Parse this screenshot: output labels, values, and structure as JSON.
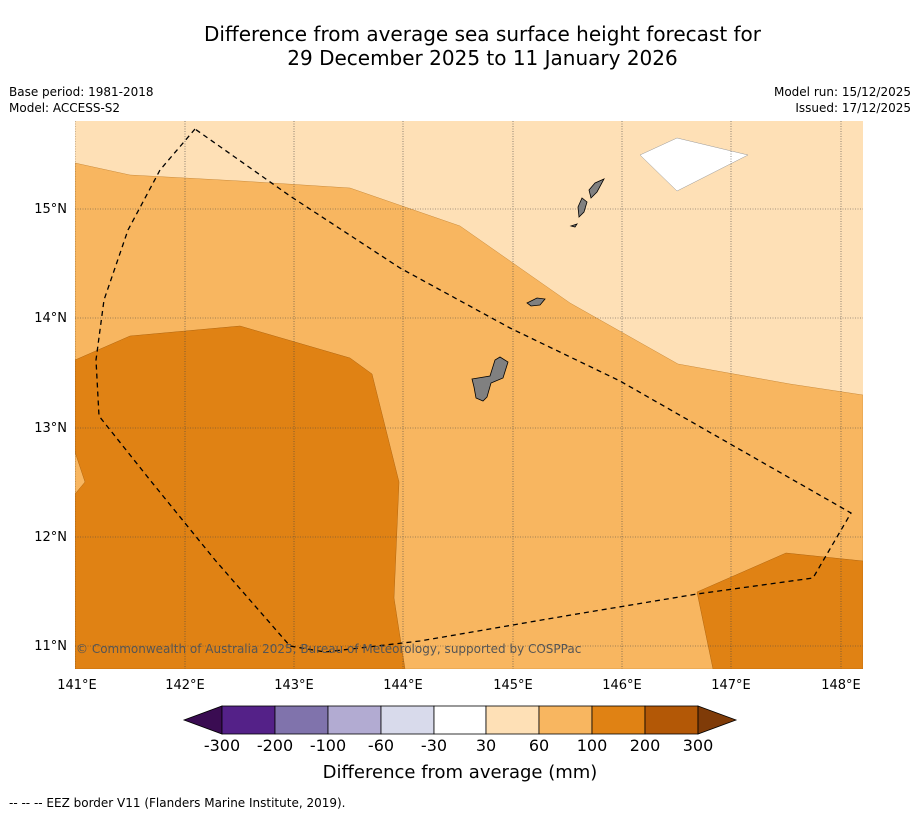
{
  "title_line1": "Difference from average sea surface height forecast for",
  "title_line2": "29 December 2025 to 11 January 2026",
  "base_period": "Base period: 1981-2018",
  "model": "Model: ACCESS-S2",
  "model_run": "Model run: 15/12/2025",
  "issued": "Issued: 17/12/2025",
  "map": {
    "lat_labels": [
      "15°N",
      "14°N",
      "13°N",
      "12°N",
      "11°N"
    ],
    "lon_labels": [
      "141°E",
      "142°E",
      "143°E",
      "144°E",
      "145°E",
      "146°E",
      "147°E",
      "148°E"
    ],
    "copyright": "© Commonwealth of Australia 2025, Bureau of Meteorology, supported by COSPPac",
    "land_color": "#808080",
    "eez_style": "dashed black line"
  },
  "colorbar": {
    "title": "Difference from average (mm)",
    "tick_labels": [
      "-300",
      "-200",
      "-100",
      "-60",
      "-30",
      "30",
      "60",
      "100",
      "200",
      "300"
    ],
    "colors": [
      "#3a0c52",
      "#542188",
      "#8073ac",
      "#b2abd2",
      "#d8daeb",
      "#ffffff",
      "#fee0b6",
      "#f8b660",
      "#e08214",
      "#b35806",
      "#7f3b08"
    ]
  },
  "footer": "--  --  -- EEZ border V11 (Flanders Marine Institute, 2019)."
}
